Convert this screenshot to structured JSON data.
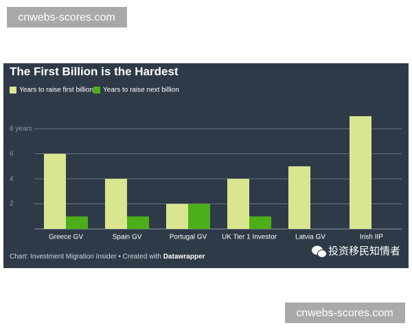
{
  "watermark": "cnwebs-scores.com",
  "chart_data": {
    "type": "bar",
    "title": "The First Billion is the Hardest",
    "categories": [
      "Greece GV",
      "Spain GV",
      "Portugal GV",
      "UK Tier 1 Investor",
      "Latvia GV",
      "Irish IIP"
    ],
    "series": [
      {
        "name": "Years to raise first billion",
        "color": "#d9e68f",
        "values": [
          6,
          4,
          2,
          4,
          5,
          9
        ]
      },
      {
        "name": "Years to raise next billion",
        "color": "#4caf1a",
        "values": [
          1,
          1,
          2,
          1,
          null,
          null
        ]
      }
    ],
    "ylim": [
      0,
      9
    ],
    "yticks": [
      2,
      4,
      6,
      {
        "value": 8,
        "label": "8 years"
      }
    ],
    "grid": true,
    "credit": "Chart: Investment Migration Insider • Created with",
    "credit_tool": "Datawrapper",
    "brand": "投资移民知情者"
  }
}
